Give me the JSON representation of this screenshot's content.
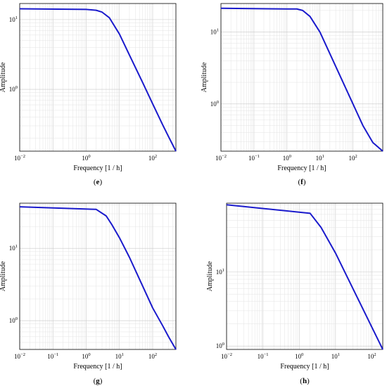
{
  "chart_data": [
    {
      "id": "e",
      "type": "line",
      "panel_label": "e",
      "xlabel": "Frequency [1 / h]",
      "ylabel": "Amplitude",
      "x_scale": "log",
      "y_scale": "log",
      "xlim": [
        0.01,
        500
      ],
      "ylim": [
        0.13,
        17
      ],
      "x_ticks": [
        {
          "base": "10",
          "exp": "−2",
          "v": 0.01
        },
        {
          "base": "10",
          "exp": "0",
          "v": 1
        },
        {
          "base": "10",
          "exp": "2",
          "v": 100
        }
      ],
      "y_ticks": [
        {
          "base": "10",
          "exp": "0",
          "v": 1
        },
        {
          "base": "10",
          "exp": "1",
          "v": 10
        }
      ],
      "grid": true,
      "color": "#1a1acc",
      "series": [
        {
          "x": [
            0.01,
            1,
            2,
            3,
            5,
            10,
            20,
            50,
            100,
            200,
            300,
            500
          ],
          "y": [
            14.3,
            14.0,
            13.6,
            12.8,
            10.6,
            6.2,
            3.1,
            1.25,
            0.62,
            0.31,
            0.21,
            0.13
          ]
        }
      ]
    },
    {
      "id": "f",
      "type": "line",
      "panel_label": "f",
      "xlabel": "Frequency [1 / h]",
      "ylabel": "Amplitude",
      "x_scale": "log",
      "y_scale": "log",
      "xlim": [
        0.01,
        800
      ],
      "ylim": [
        0.22,
        25
      ],
      "x_ticks": [
        {
          "base": "10",
          "exp": "−2",
          "v": 0.01
        },
        {
          "base": "10",
          "exp": "−1",
          "v": 0.1
        },
        {
          "base": "10",
          "exp": "0",
          "v": 1
        },
        {
          "base": "10",
          "exp": "1",
          "v": 10
        },
        {
          "base": "10",
          "exp": "2",
          "v": 100
        }
      ],
      "y_ticks": [
        {
          "base": "10",
          "exp": "0",
          "v": 1
        },
        {
          "base": "10",
          "exp": "1",
          "v": 10
        }
      ],
      "grid": true,
      "color": "#1a1acc",
      "series": [
        {
          "x": [
            0.01,
            1,
            2,
            3,
            5,
            10,
            20,
            50,
            100,
            200,
            400,
            800
          ],
          "y": [
            21.5,
            21.0,
            21.0,
            20.0,
            16.5,
            10.0,
            5.0,
            2.0,
            1.0,
            0.5,
            0.29,
            0.22
          ]
        }
      ]
    },
    {
      "id": "g",
      "type": "line",
      "panel_label": "g",
      "xlabel": "Frequency [1 / h]",
      "ylabel": "Amplitude",
      "x_scale": "log",
      "y_scale": "log",
      "xlim": [
        0.01,
        500
      ],
      "ylim": [
        0.4,
        42
      ],
      "x_ticks": [
        {
          "base": "10",
          "exp": "−2",
          "v": 0.01
        },
        {
          "base": "10",
          "exp": "−1",
          "v": 0.1
        },
        {
          "base": "10",
          "exp": "0",
          "v": 1
        },
        {
          "base": "10",
          "exp": "1",
          "v": 10
        },
        {
          "base": "10",
          "exp": "2",
          "v": 100
        }
      ],
      "y_ticks": [
        {
          "base": "10",
          "exp": "0",
          "v": 1
        },
        {
          "base": "10",
          "exp": "1",
          "v": 10
        }
      ],
      "grid": true,
      "color": "#1a1acc",
      "series": [
        {
          "x": [
            0.01,
            2,
            4,
            6,
            10,
            20,
            50,
            100,
            200,
            300,
            500
          ],
          "y": [
            37.5,
            34.5,
            28.0,
            21.0,
            14.0,
            7.5,
            3.0,
            1.5,
            0.85,
            0.6,
            0.4
          ]
        }
      ]
    },
    {
      "id": "h",
      "type": "line",
      "panel_label": "h",
      "xlabel": "Frequency [1 / h]",
      "ylabel": "Amplitude",
      "x_scale": "log",
      "y_scale": "log",
      "xlim": [
        0.01,
        200
      ],
      "ylim": [
        0.9,
        85
      ],
      "x_ticks": [
        {
          "base": "10",
          "exp": "−2",
          "v": 0.01
        },
        {
          "base": "10",
          "exp": "−1",
          "v": 0.1
        },
        {
          "base": "10",
          "exp": "0",
          "v": 1
        },
        {
          "base": "10",
          "exp": "1",
          "v": 10
        },
        {
          "base": "10",
          "exp": "2",
          "v": 100
        }
      ],
      "y_ticks": [
        {
          "base": "10",
          "exp": "0",
          "v": 1
        },
        {
          "base": "10",
          "exp": "1",
          "v": 10
        }
      ],
      "grid": true,
      "color": "#1a1acc",
      "series": [
        {
          "x": [
            0.01,
            2,
            4,
            10,
            20,
            50,
            100,
            150,
            200
          ],
          "y": [
            81.0,
            62.0,
            40.0,
            18.0,
            9.0,
            3.6,
            1.8,
            1.2,
            0.9
          ]
        }
      ]
    }
  ]
}
